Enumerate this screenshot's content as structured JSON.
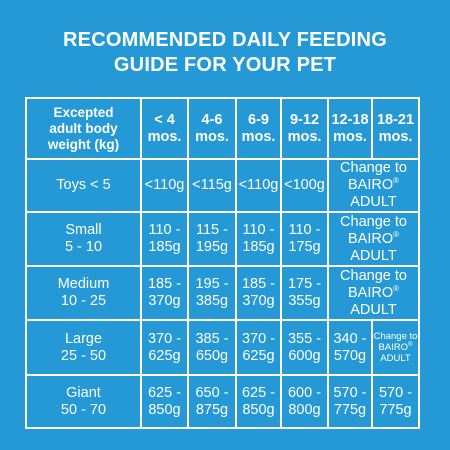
{
  "title": {
    "line1": "RECOMMENDED DAILY FEEDING",
    "line2": "GUIDE FOR YOUR PET"
  },
  "table": {
    "header": {
      "weight": [
        "Excepted",
        "adult body",
        "weight (kg)"
      ],
      "ages": [
        [
          "< 4",
          "mos."
        ],
        [
          "4-6",
          "mos."
        ],
        [
          "6-9",
          "mos."
        ],
        [
          "9-12",
          "mos."
        ],
        [
          "12-18",
          "mos."
        ],
        [
          "18-21",
          "mos."
        ]
      ]
    },
    "change": {
      "line1": "Change to",
      "brand": "BAIRO",
      "reg": "®",
      "line3": "ADULT"
    },
    "rows": [
      {
        "label": [
          "Toys < 5"
        ],
        "values": [
          [
            "<110g"
          ],
          [
            "<115g"
          ],
          [
            "<110g"
          ],
          [
            "<100g"
          ]
        ]
      },
      {
        "label": [
          "Small",
          "5 - 10"
        ],
        "values": [
          [
            "110 -",
            "185g"
          ],
          [
            "115 -",
            "195g"
          ],
          [
            "110 -",
            "185g"
          ],
          [
            "110 -",
            "175g"
          ]
        ]
      },
      {
        "label": [
          "Medium",
          "10 - 25"
        ],
        "values": [
          [
            "185 -",
            "370g"
          ],
          [
            "195 -",
            "385g"
          ],
          [
            "185 -",
            "370g"
          ],
          [
            "175 -",
            "355g"
          ]
        ]
      },
      {
        "label": [
          "Large",
          "25 - 50"
        ],
        "values": [
          [
            "370 -",
            "625g"
          ],
          [
            "385 -",
            "650g"
          ],
          [
            "370 -",
            "625g"
          ],
          [
            "355 -",
            "600g"
          ],
          [
            "340 -",
            "570g"
          ]
        ]
      },
      {
        "label": [
          "Giant",
          "50 - 70"
        ],
        "values": [
          [
            "625 -",
            "850g"
          ],
          [
            "650 -",
            "875g"
          ],
          [
            "625 -",
            "850g"
          ],
          [
            "600 -",
            "800g"
          ],
          [
            "570 -",
            "775g"
          ],
          [
            "570 -",
            "775g"
          ]
        ]
      }
    ]
  }
}
